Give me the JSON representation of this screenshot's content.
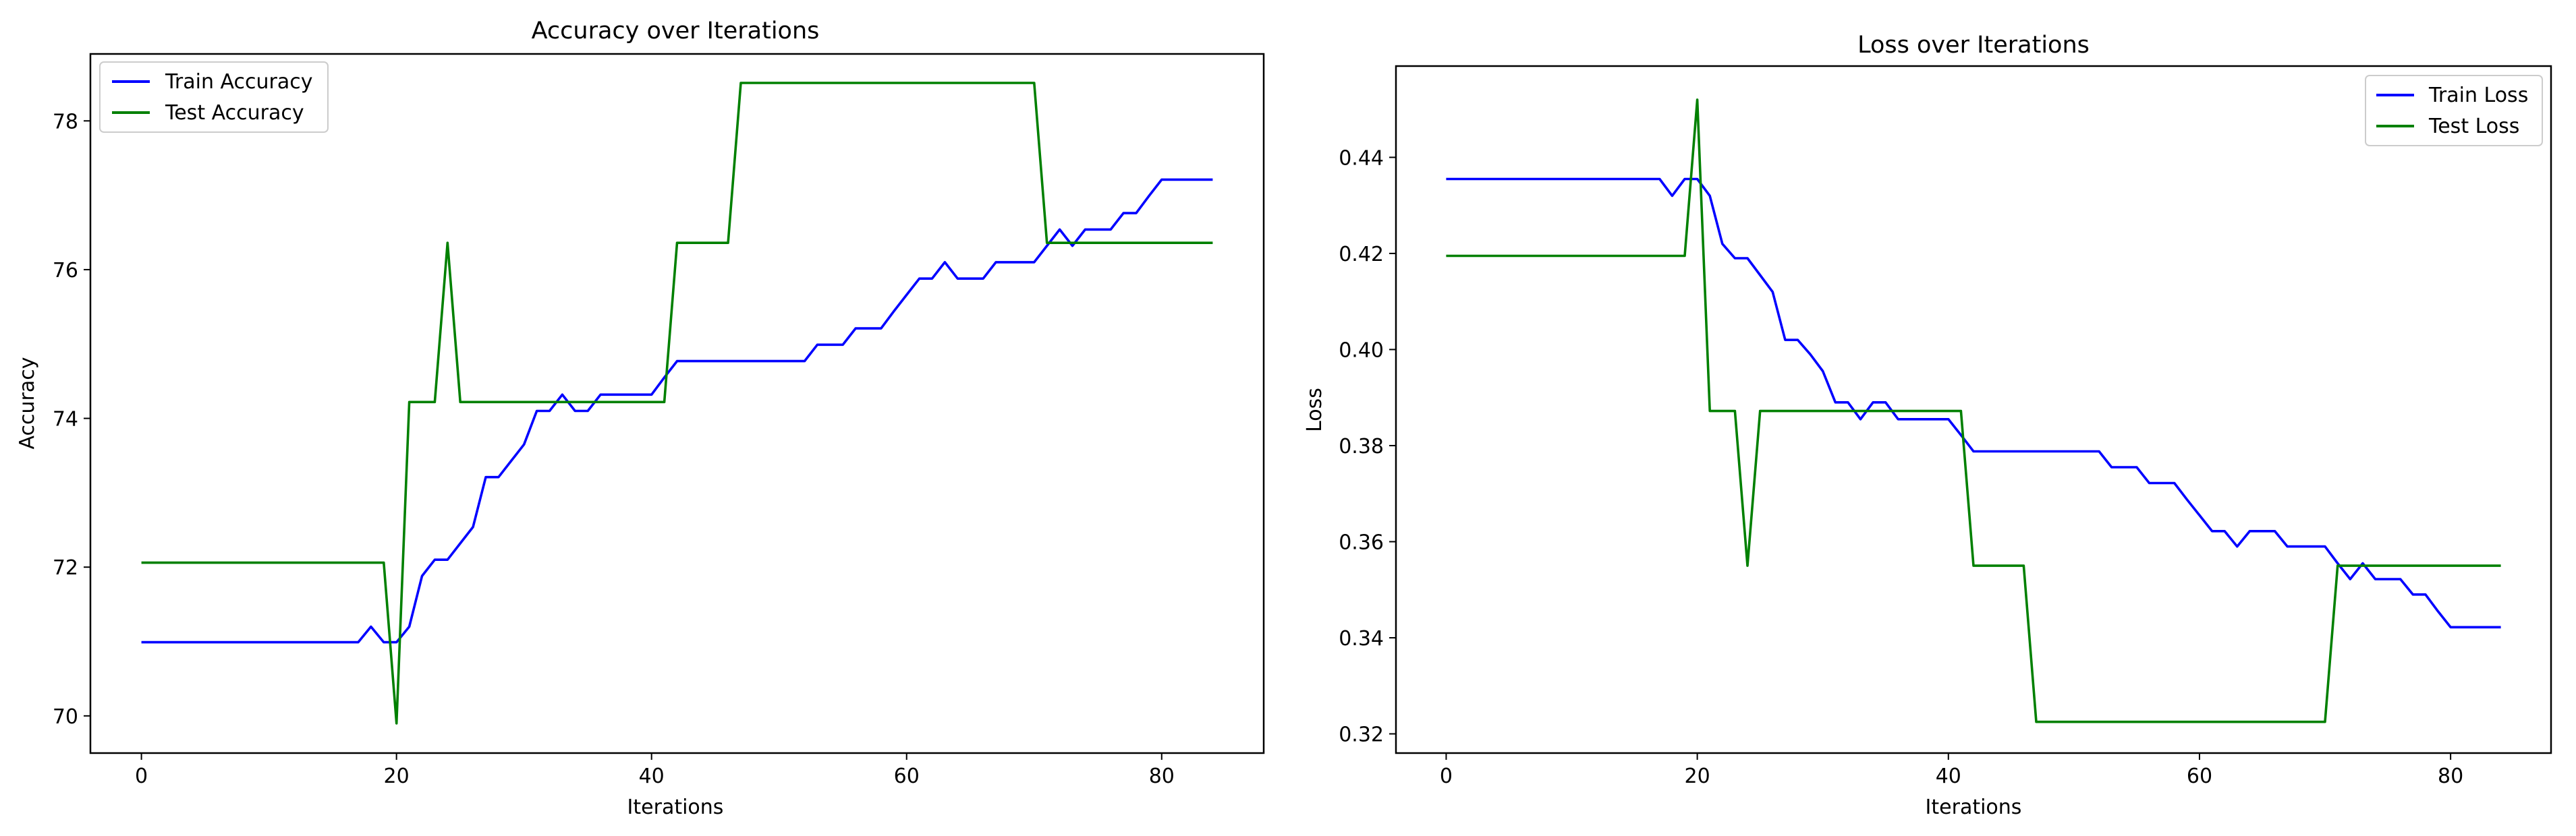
{
  "chart_data": [
    {
      "type": "line",
      "title": "Accuracy over Iterations",
      "xlabel": "Iterations",
      "ylabel": "Accuracy",
      "xlim": [
        -4,
        88
      ],
      "ylim": [
        69.5,
        78.9
      ],
      "xticks": [
        0,
        20,
        40,
        60,
        80
      ],
      "yticks": [
        70,
        72,
        74,
        76,
        78
      ],
      "legend_position": "upper-left",
      "grid": false,
      "series": [
        {
          "name": "Train Accuracy",
          "color": "#0000ff",
          "x": [
            0,
            1,
            2,
            3,
            4,
            5,
            6,
            7,
            8,
            9,
            10,
            11,
            12,
            13,
            14,
            15,
            16,
            17,
            18,
            19,
            20,
            21,
            22,
            23,
            24,
            25,
            26,
            27,
            28,
            29,
            30,
            31,
            32,
            33,
            34,
            35,
            36,
            37,
            38,
            39,
            40,
            41,
            42,
            43,
            44,
            45,
            46,
            47,
            48,
            49,
            50,
            51,
            52,
            53,
            54,
            55,
            56,
            57,
            58,
            59,
            60,
            61,
            62,
            63,
            64,
            65,
            66,
            67,
            68,
            69,
            70,
            71,
            72,
            73,
            74,
            75,
            76,
            77,
            78,
            79,
            80,
            81,
            82,
            83,
            84
          ],
          "values": [
            70.99,
            70.99,
            70.99,
            70.99,
            70.99,
            70.99,
            70.99,
            70.99,
            70.99,
            70.99,
            70.99,
            70.99,
            70.99,
            70.99,
            70.99,
            70.99,
            70.99,
            70.99,
            71.2,
            70.99,
            70.99,
            71.2,
            71.88,
            72.1,
            72.1,
            72.32,
            72.54,
            73.21,
            73.21,
            73.43,
            73.65,
            74.1,
            74.1,
            74.32,
            74.1,
            74.1,
            74.32,
            74.32,
            74.32,
            74.32,
            74.32,
            74.55,
            74.77,
            74.77,
            74.77,
            74.77,
            74.77,
            74.77,
            74.77,
            74.77,
            74.77,
            74.77,
            74.77,
            74.99,
            74.99,
            74.99,
            75.21,
            75.21,
            75.21,
            75.44,
            75.66,
            75.88,
            75.88,
            76.1,
            75.88,
            75.88,
            75.88,
            76.1,
            76.1,
            76.1,
            76.1,
            76.32,
            76.54,
            76.32,
            76.54,
            76.54,
            76.54,
            76.76,
            76.76,
            76.99,
            77.21,
            77.21,
            77.21,
            77.21,
            77.21
          ]
        },
        {
          "name": "Test Accuracy",
          "color": "#008000",
          "x": [
            0,
            1,
            2,
            3,
            4,
            5,
            6,
            7,
            8,
            9,
            10,
            11,
            12,
            13,
            14,
            15,
            16,
            17,
            18,
            19,
            20,
            21,
            22,
            23,
            24,
            25,
            26,
            27,
            28,
            29,
            30,
            31,
            32,
            33,
            34,
            35,
            36,
            37,
            38,
            39,
            40,
            41,
            42,
            43,
            44,
            45,
            46,
            47,
            48,
            49,
            50,
            51,
            52,
            53,
            54,
            55,
            56,
            57,
            58,
            59,
            60,
            61,
            62,
            63,
            64,
            65,
            66,
            67,
            68,
            69,
            70,
            71,
            72,
            73,
            74,
            75,
            76,
            77,
            78,
            79,
            80,
            81,
            82,
            83,
            84
          ],
          "values": [
            72.06,
            72.06,
            72.06,
            72.06,
            72.06,
            72.06,
            72.06,
            72.06,
            72.06,
            72.06,
            72.06,
            72.06,
            72.06,
            72.06,
            72.06,
            72.06,
            72.06,
            72.06,
            72.06,
            72.06,
            69.9,
            74.22,
            74.22,
            74.22,
            76.36,
            74.22,
            74.22,
            74.22,
            74.22,
            74.22,
            74.22,
            74.22,
            74.22,
            74.22,
            74.22,
            74.22,
            74.22,
            74.22,
            74.22,
            74.22,
            74.22,
            74.22,
            76.36,
            76.36,
            76.36,
            76.36,
            76.36,
            78.51,
            78.51,
            78.51,
            78.51,
            78.51,
            78.51,
            78.51,
            78.51,
            78.51,
            78.51,
            78.51,
            78.51,
            78.51,
            78.51,
            78.51,
            78.51,
            78.51,
            78.51,
            78.51,
            78.51,
            78.51,
            78.51,
            78.51,
            78.51,
            76.36,
            76.36,
            76.36,
            76.36,
            76.36,
            76.36,
            76.36,
            76.36,
            76.36,
            76.36,
            76.36,
            76.36,
            76.36,
            76.36
          ]
        }
      ]
    },
    {
      "type": "line",
      "title": "Loss over Iterations",
      "xlabel": "Iterations",
      "ylabel": "Loss",
      "xlim": [
        -4,
        88
      ],
      "ylim": [
        0.316,
        0.459
      ],
      "xticks": [
        0,
        20,
        40,
        60,
        80
      ],
      "yticks": [
        0.32,
        0.34,
        0.36,
        0.38,
        0.4,
        0.42,
        0.44
      ],
      "ytick_labels": [
        "0.32",
        "0.34",
        "0.36",
        "0.38",
        "0.40",
        "0.42",
        "0.44"
      ],
      "legend_position": "upper-right",
      "grid": false,
      "series": [
        {
          "name": "Train Loss",
          "color": "#0000ff",
          "x": [
            0,
            1,
            2,
            3,
            4,
            5,
            6,
            7,
            8,
            9,
            10,
            11,
            12,
            13,
            14,
            15,
            16,
            17,
            18,
            19,
            20,
            21,
            22,
            23,
            24,
            25,
            26,
            27,
            28,
            29,
            30,
            31,
            32,
            33,
            34,
            35,
            36,
            37,
            38,
            39,
            40,
            41,
            42,
            43,
            44,
            45,
            46,
            47,
            48,
            49,
            50,
            51,
            52,
            53,
            54,
            55,
            56,
            57,
            58,
            59,
            60,
            61,
            62,
            63,
            64,
            65,
            66,
            67,
            68,
            69,
            70,
            71,
            72,
            73,
            74,
            75,
            76,
            77,
            78,
            79,
            80,
            81,
            82,
            83,
            84
          ],
          "values": [
            0.4355,
            0.4355,
            0.4355,
            0.4355,
            0.4355,
            0.4355,
            0.4355,
            0.4355,
            0.4355,
            0.4355,
            0.4355,
            0.4355,
            0.4355,
            0.4355,
            0.4355,
            0.4355,
            0.4355,
            0.4355,
            0.432,
            0.4355,
            0.4355,
            0.432,
            0.422,
            0.419,
            0.419,
            0.4155,
            0.412,
            0.402,
            0.402,
            0.399,
            0.3955,
            0.389,
            0.389,
            0.3855,
            0.389,
            0.389,
            0.3855,
            0.3855,
            0.3855,
            0.3855,
            0.3855,
            0.3822,
            0.3788,
            0.3788,
            0.3788,
            0.3788,
            0.3788,
            0.3788,
            0.3788,
            0.3788,
            0.3788,
            0.3788,
            0.3788,
            0.3755,
            0.3755,
            0.3755,
            0.3722,
            0.3722,
            0.3722,
            0.3688,
            0.3655,
            0.3622,
            0.3622,
            0.359,
            0.3622,
            0.3622,
            0.3622,
            0.359,
            0.359,
            0.359,
            0.359,
            0.3555,
            0.3522,
            0.3555,
            0.3522,
            0.3522,
            0.3522,
            0.349,
            0.349,
            0.3455,
            0.3422,
            0.3422,
            0.3422,
            0.3422,
            0.3422
          ]
        },
        {
          "name": "Test Loss",
          "color": "#008000",
          "x": [
            0,
            1,
            2,
            3,
            4,
            5,
            6,
            7,
            8,
            9,
            10,
            11,
            12,
            13,
            14,
            15,
            16,
            17,
            18,
            19,
            20,
            21,
            22,
            23,
            24,
            25,
            26,
            27,
            28,
            29,
            30,
            31,
            32,
            33,
            34,
            35,
            36,
            37,
            38,
            39,
            40,
            41,
            42,
            43,
            44,
            45,
            46,
            47,
            48,
            49,
            50,
            51,
            52,
            53,
            54,
            55,
            56,
            57,
            58,
            59,
            60,
            61,
            62,
            63,
            64,
            65,
            66,
            67,
            68,
            69,
            70,
            71,
            72,
            73,
            74,
            75,
            76,
            77,
            78,
            79,
            80,
            81,
            82,
            83,
            84
          ],
          "values": [
            0.4195,
            0.4195,
            0.4195,
            0.4195,
            0.4195,
            0.4195,
            0.4195,
            0.4195,
            0.4195,
            0.4195,
            0.4195,
            0.4195,
            0.4195,
            0.4195,
            0.4195,
            0.4195,
            0.4195,
            0.4195,
            0.4195,
            0.4195,
            0.452,
            0.3872,
            0.3872,
            0.3872,
            0.355,
            0.3872,
            0.3872,
            0.3872,
            0.3872,
            0.3872,
            0.3872,
            0.3872,
            0.3872,
            0.3872,
            0.3872,
            0.3872,
            0.3872,
            0.3872,
            0.3872,
            0.3872,
            0.3872,
            0.3872,
            0.355,
            0.355,
            0.355,
            0.355,
            0.355,
            0.3225,
            0.3225,
            0.3225,
            0.3225,
            0.3225,
            0.3225,
            0.3225,
            0.3225,
            0.3225,
            0.3225,
            0.3225,
            0.3225,
            0.3225,
            0.3225,
            0.3225,
            0.3225,
            0.3225,
            0.3225,
            0.3225,
            0.3225,
            0.3225,
            0.3225,
            0.3225,
            0.3225,
            0.355,
            0.355,
            0.355,
            0.355,
            0.355,
            0.355,
            0.355,
            0.355,
            0.355,
            0.355,
            0.355,
            0.355,
            0.355,
            0.355
          ]
        }
      ]
    }
  ]
}
